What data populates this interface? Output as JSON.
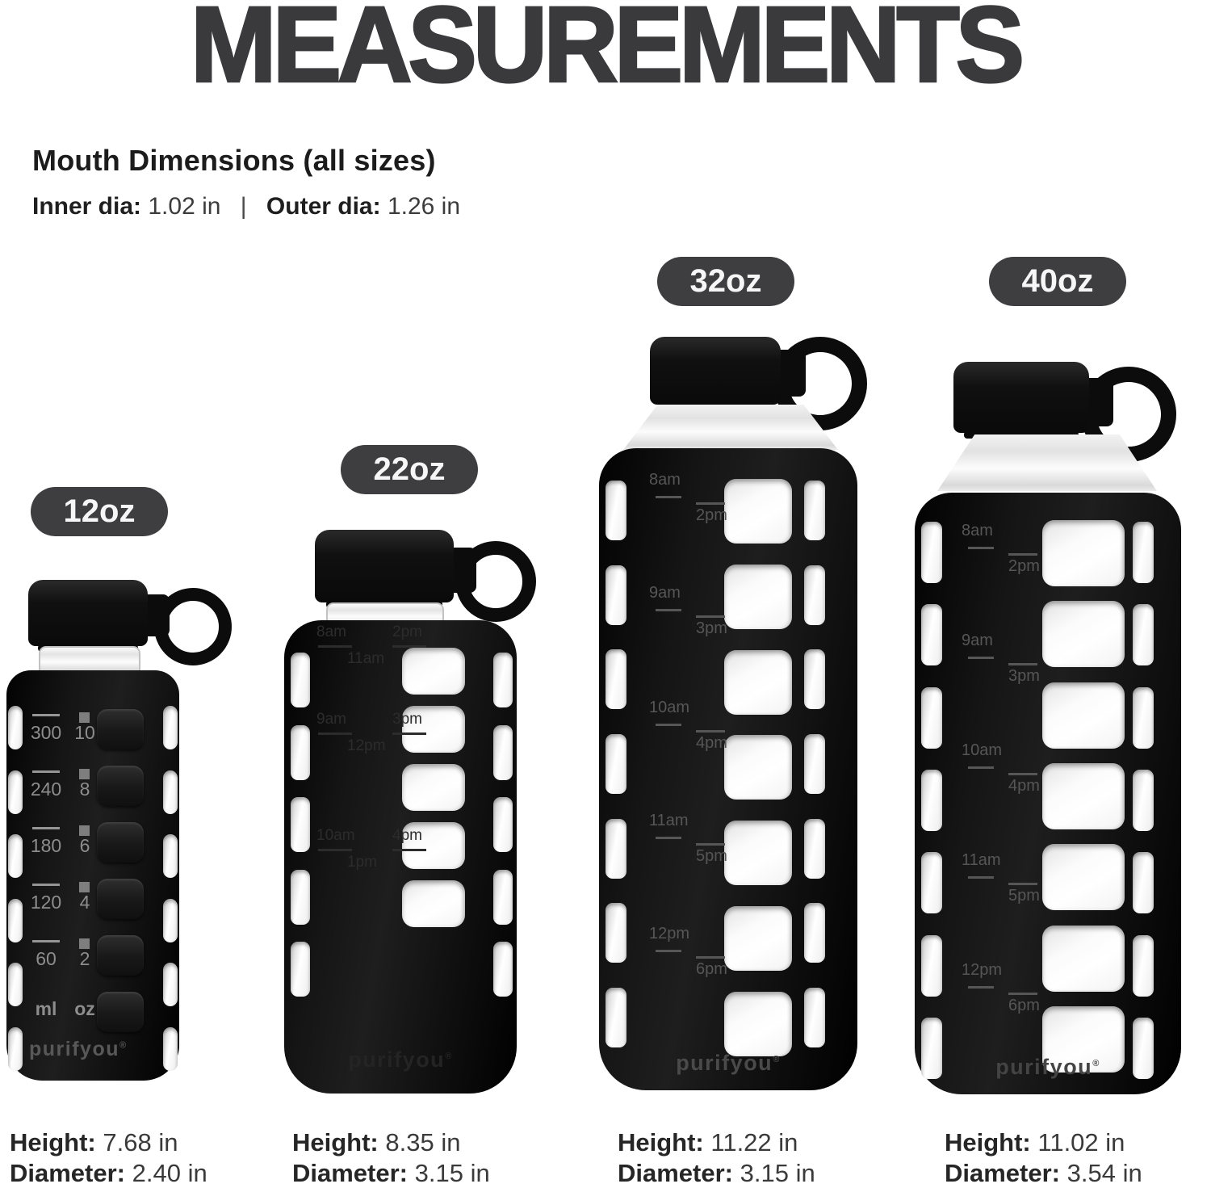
{
  "title": "MEASUREMENTS",
  "mouth": {
    "heading": "Mouth Dimensions (all sizes)",
    "inner_label": "Inner dia:",
    "inner_value": "1.02 in",
    "divider": "|",
    "outer_label": "Outer dia:",
    "outer_value": "1.26 in"
  },
  "brand": "purifyou",
  "brand_mark": "®",
  "colors": {
    "badge_bg": "#3e3e41",
    "badge_text": "#f6f6f6",
    "title": "#3a3a3c",
    "body_text": "#3a3a3a",
    "bottle_black": "#0d0d0d",
    "scale_label": "#8d8d8d",
    "time_label": "#565656",
    "time_label_faint": "#2c2c2c"
  },
  "bottles": [
    {
      "size": "12oz",
      "dimensions": {
        "height_label": "Height:",
        "height": "7.68 in",
        "diameter_label": "Diameter:",
        "diameter": "2.40 in"
      },
      "scale": {
        "rows": [
          {
            "ml": "300",
            "oz": "10"
          },
          {
            "ml": "240",
            "oz": "8"
          },
          {
            "ml": "180",
            "oz": "6"
          },
          {
            "ml": "120",
            "oz": "4"
          },
          {
            "ml": "60",
            "oz": "2"
          }
        ],
        "units": {
          "ml": "ml",
          "oz": "oz"
        }
      }
    },
    {
      "size": "22oz",
      "dimensions": {
        "height_label": "Height:",
        "height": "8.35 in",
        "diameter_label": "Diameter:",
        "diameter": "3.15 in"
      },
      "time_groups": [
        {
          "am": "8am",
          "pm": "2pm",
          "mid": "11am"
        },
        {
          "am": "9am",
          "pm": "3pm",
          "mid": "12pm"
        },
        {
          "am": "10am",
          "pm": "4pm",
          "mid": "1pm"
        }
      ]
    },
    {
      "size": "32oz",
      "dimensions": {
        "height_label": "Height:",
        "height": "11.22 in",
        "diameter_label": "Diameter:",
        "diameter": "3.15 in"
      },
      "time_groups": [
        {
          "am": "8am",
          "pm": "2pm"
        },
        {
          "am": "9am",
          "pm": "3pm"
        },
        {
          "am": "10am",
          "pm": "4pm"
        },
        {
          "am": "11am",
          "pm": "5pm"
        },
        {
          "am": "12pm",
          "pm": "6pm"
        }
      ]
    },
    {
      "size": "40oz",
      "dimensions": {
        "height_label": "Height:",
        "height": "11.02 in",
        "diameter_label": "Diameter:",
        "diameter": "3.54 in"
      },
      "time_groups": [
        {
          "am": "8am",
          "pm": "2pm"
        },
        {
          "am": "9am",
          "pm": "3pm"
        },
        {
          "am": "10am",
          "pm": "4pm"
        },
        {
          "am": "11am",
          "pm": "5pm"
        },
        {
          "am": "12pm",
          "pm": "6pm"
        }
      ]
    }
  ]
}
